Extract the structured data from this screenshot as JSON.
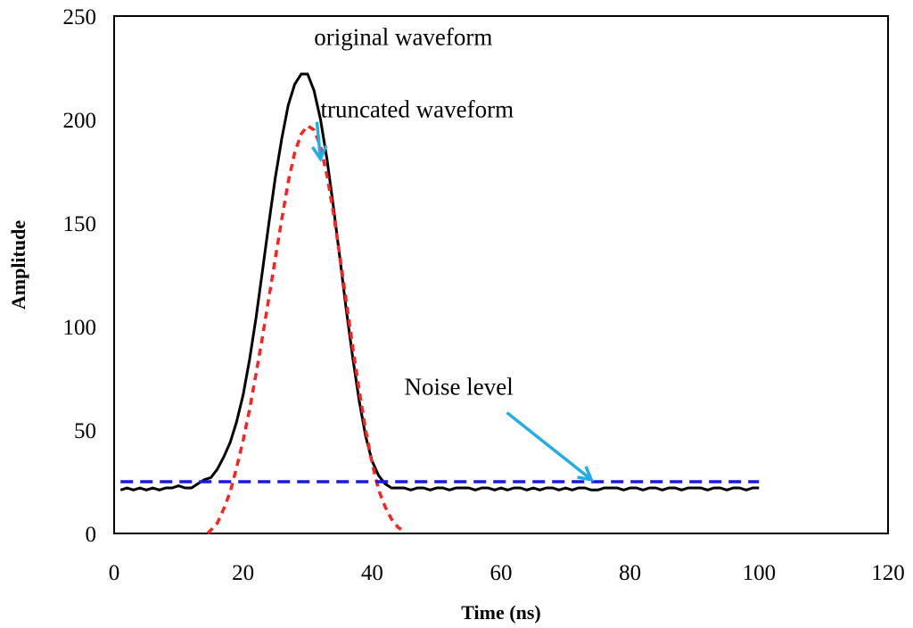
{
  "chart_data": {
    "type": "line",
    "title": "",
    "xlabel": "Time (ns)",
    "ylabel": "Amplitude",
    "xlim": [
      0,
      120
    ],
    "ylim": [
      0,
      250
    ],
    "xticks": [
      0,
      20,
      40,
      60,
      80,
      100,
      120
    ],
    "yticks": [
      0,
      50,
      100,
      150,
      200,
      250
    ],
    "grid": false,
    "legend": "none",
    "series": [
      {
        "name": "original waveform",
        "style": "solid",
        "color": "#000000",
        "x": [
          1,
          2,
          3,
          4,
          5,
          6,
          7,
          8,
          9,
          10,
          11,
          12,
          13,
          14,
          15,
          16,
          17,
          18,
          19,
          20,
          21,
          22,
          23,
          24,
          25,
          26,
          27,
          28,
          29,
          30,
          31,
          32,
          33,
          34,
          35,
          36,
          37,
          38,
          39,
          40,
          41,
          42,
          43,
          44,
          45,
          46,
          47,
          48,
          49,
          50,
          51,
          52,
          53,
          54,
          55,
          56,
          57,
          58,
          59,
          60,
          61,
          62,
          63,
          64,
          65,
          66,
          67,
          68,
          69,
          70,
          71,
          72,
          73,
          74,
          75,
          76,
          77,
          78,
          79,
          80,
          81,
          82,
          83,
          84,
          85,
          86,
          87,
          88,
          89,
          90,
          91,
          92,
          93,
          94,
          95,
          96,
          97,
          98,
          99,
          100
        ],
        "y": [
          21,
          22,
          21,
          22,
          21,
          22,
          21,
          22,
          22,
          23,
          22,
          22,
          24,
          26,
          27,
          31,
          37,
          44,
          54,
          67,
          84,
          104,
          127,
          150,
          172,
          191,
          207,
          217,
          222,
          222,
          214,
          200,
          181,
          158,
          133,
          108,
          85,
          64,
          47,
          35,
          28,
          24,
          22,
          22,
          22,
          21,
          22,
          22,
          21,
          22,
          22,
          21,
          22,
          22,
          22,
          21,
          22,
          22,
          21,
          22,
          21,
          22,
          22,
          21,
          22,
          21,
          22,
          22,
          21,
          22,
          21,
          22,
          22,
          21,
          21,
          22,
          22,
          22,
          21,
          22,
          22,
          21,
          22,
          22,
          21,
          22,
          22,
          21,
          22,
          22,
          22,
          21,
          22,
          22,
          21,
          22,
          22,
          21,
          22,
          22
        ]
      },
      {
        "name": "truncated waveform",
        "style": "dashed",
        "color": "#ff2020",
        "x": [
          14.5,
          16,
          17,
          18,
          19,
          20,
          21,
          22,
          23,
          24,
          25,
          26,
          27,
          28,
          29,
          30,
          31,
          32,
          33,
          34,
          35,
          36,
          37,
          38,
          39,
          40,
          41,
          42,
          43,
          44,
          44.5
        ],
        "y": [
          0,
          5,
          12,
          20,
          32,
          45,
          60,
          77,
          95,
          114,
          133,
          152,
          170,
          184,
          193,
          197,
          195,
          187,
          173,
          155,
          134,
          112,
          90,
          69,
          50,
          34,
          21,
          13,
          7,
          3,
          2
        ]
      },
      {
        "name": "Noise level",
        "style": "dashed",
        "color": "#1a1adb",
        "x": [
          1,
          100
        ],
        "y": [
          25,
          25
        ]
      }
    ],
    "annotations": [
      {
        "text": "original waveform",
        "x": 31,
        "y": 236
      },
      {
        "text": "truncated waveform",
        "x": 32,
        "y": 201,
        "arrow_to": [
          32,
          181
        ]
      },
      {
        "text": "Noise level",
        "x": 45,
        "y": 67,
        "arrow_to": [
          74,
          26
        ]
      }
    ],
    "arrow_color": "#21aee6"
  }
}
